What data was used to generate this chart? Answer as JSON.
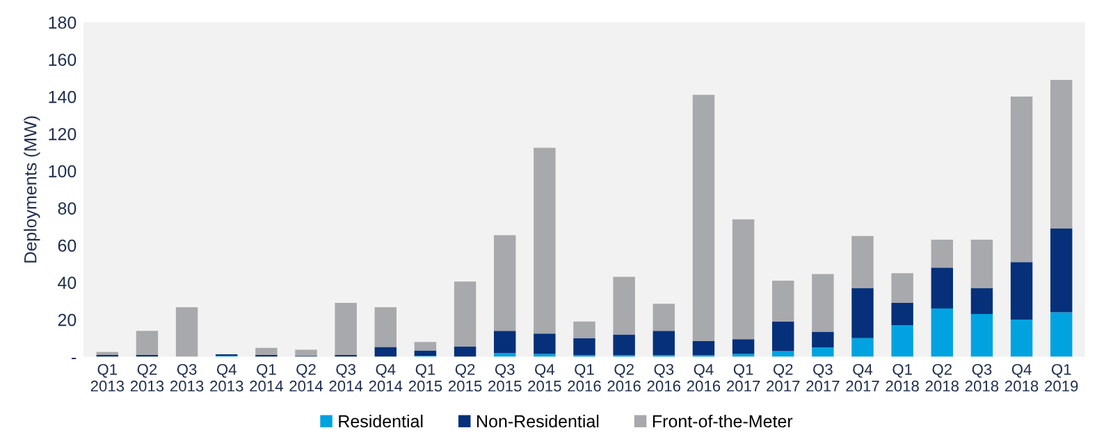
{
  "chart_data": {
    "type": "bar",
    "stacked": true,
    "ylabel": "Deployments (MW)",
    "categories": [
      "Q1\n2013",
      "Q2\n2013",
      "Q3\n2013",
      "Q4\n2013",
      "Q1\n2014",
      "Q2\n2014",
      "Q3\n2014",
      "Q4\n2014",
      "Q1\n2015",
      "Q2\n2015",
      "Q3\n2015",
      "Q4\n2015",
      "Q1\n2016",
      "Q2\n2016",
      "Q3\n2016",
      "Q4\n2016",
      "Q1\n2017",
      "Q2\n2017",
      "Q3\n2017",
      "Q4\n2017",
      "Q1\n2018",
      "Q2\n2018",
      "Q3\n2018",
      "Q4\n2018",
      "Q1\n2019"
    ],
    "series": [
      {
        "name": "Residential",
        "color": "#00a3e0",
        "values": [
          0,
          0,
          0,
          0.5,
          0,
          0,
          0,
          0,
          0.5,
          null,
          2,
          1.5,
          1,
          1,
          1,
          1,
          1.5,
          3,
          5,
          10,
          17,
          26,
          23,
          20,
          24
        ]
      },
      {
        "name": "Non-Residential",
        "color": "#06307a",
        "values": [
          1,
          1,
          0,
          0.8,
          1,
          0.5,
          1,
          5.3,
          2.9,
          5.5,
          12,
          11,
          9,
          11,
          13,
          7.5,
          8,
          16,
          8.5,
          27,
          12,
          22,
          14,
          31,
          45
        ]
      },
      {
        "name": "Front-of-the-Meter",
        "color": "#a7a9ac",
        "values": [
          1.6,
          13,
          26.7,
          null,
          3.8,
          3.3,
          28,
          21.4,
          4.6,
          35,
          51.5,
          100,
          9,
          31,
          14.5,
          132.5,
          64.5,
          22,
          31,
          28,
          16,
          15,
          26,
          89,
          80
        ]
      }
    ],
    "ylim": [
      0,
      180
    ],
    "yticks": [
      {
        "value": 0,
        "label": "-"
      },
      20,
      40,
      60,
      80,
      100,
      120,
      140,
      160,
      180
    ],
    "grid": false,
    "legend": "bottom"
  }
}
